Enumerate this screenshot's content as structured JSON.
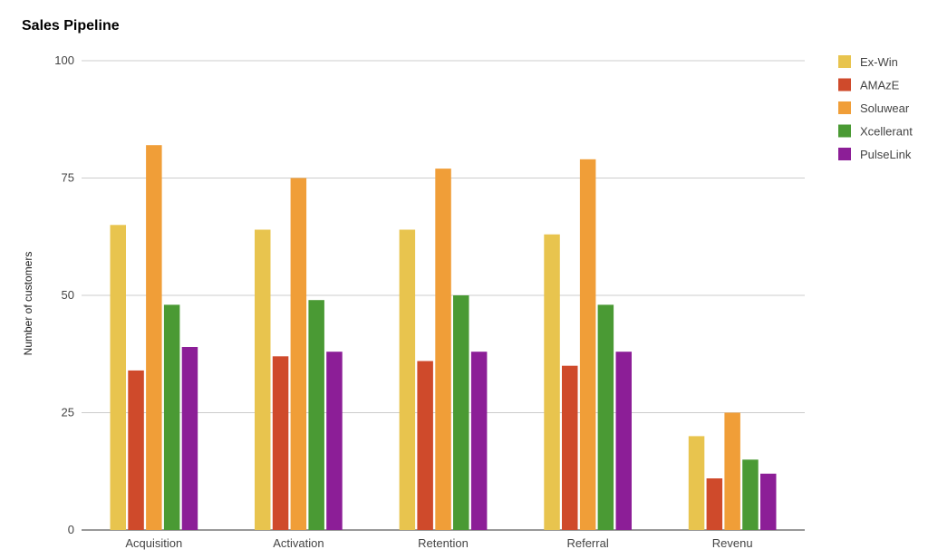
{
  "chart_data": {
    "type": "bar",
    "title": "Sales Pipeline",
    "xlabel": "",
    "ylabel": "Number of customers",
    "ylim": [
      0,
      100
    ],
    "yticks": [
      0,
      25,
      50,
      75,
      100
    ],
    "grid": true,
    "legend_position": "right",
    "categories": [
      "Acquisition",
      "Activation",
      "Retention",
      "Referral",
      "Revenu"
    ],
    "series": [
      {
        "name": "Ex-Win",
        "color": "#E8C44E",
        "values": [
          65,
          64,
          64,
          63,
          20
        ]
      },
      {
        "name": "AMAzE",
        "color": "#CF4A2B",
        "values": [
          34,
          37,
          36,
          35,
          11
        ]
      },
      {
        "name": "Soluwear",
        "color": "#F09E38",
        "values": [
          82,
          75,
          77,
          79,
          25
        ]
      },
      {
        "name": "Xcellerant",
        "color": "#4A9A34",
        "values": [
          48,
          49,
          50,
          48,
          15
        ]
      },
      {
        "name": "PulseLink",
        "color": "#8C1E97",
        "values": [
          39,
          38,
          38,
          38,
          12
        ]
      }
    ]
  }
}
